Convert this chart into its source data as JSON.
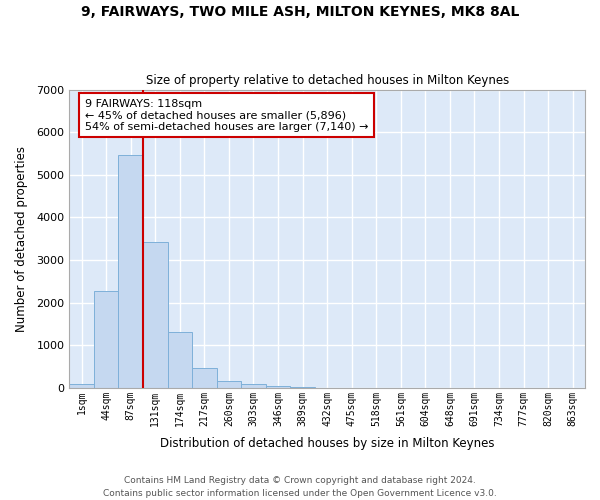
{
  "title": "9, FAIRWAYS, TWO MILE ASH, MILTON KEYNES, MK8 8AL",
  "subtitle": "Size of property relative to detached houses in Milton Keynes",
  "xlabel": "Distribution of detached houses by size in Milton Keynes",
  "ylabel": "Number of detached properties",
  "footer_line1": "Contains HM Land Registry data © Crown copyright and database right 2024.",
  "footer_line2": "Contains public sector information licensed under the Open Government Licence v3.0.",
  "bar_labels": [
    "1sqm",
    "44sqm",
    "87sqm",
    "131sqm",
    "174sqm",
    "217sqm",
    "260sqm",
    "303sqm",
    "346sqm",
    "389sqm",
    "432sqm",
    "475sqm",
    "518sqm",
    "561sqm",
    "604sqm",
    "648sqm",
    "691sqm",
    "734sqm",
    "777sqm",
    "820sqm",
    "863sqm"
  ],
  "bar_values": [
    80,
    2280,
    5470,
    3430,
    1310,
    460,
    155,
    90,
    55,
    30,
    0,
    0,
    0,
    0,
    0,
    0,
    0,
    0,
    0,
    0,
    0
  ],
  "bar_color": "#c5d8f0",
  "bar_edge_color": "#7eb0d9",
  "background_color": "#dde9f8",
  "grid_color": "#ffffff",
  "vline_color": "#cc0000",
  "vline_x_idx": 2,
  "annotation_text_line1": "9 FAIRWAYS: 118sqm",
  "annotation_text_line2": "← 45% of detached houses are smaller (5,896)",
  "annotation_text_line3": "54% of semi-detached houses are larger (7,140) →",
  "annotation_box_edgecolor": "#cc0000",
  "ylim_max": 7000,
  "yticks": [
    0,
    1000,
    2000,
    3000,
    4000,
    5000,
    6000,
    7000
  ]
}
